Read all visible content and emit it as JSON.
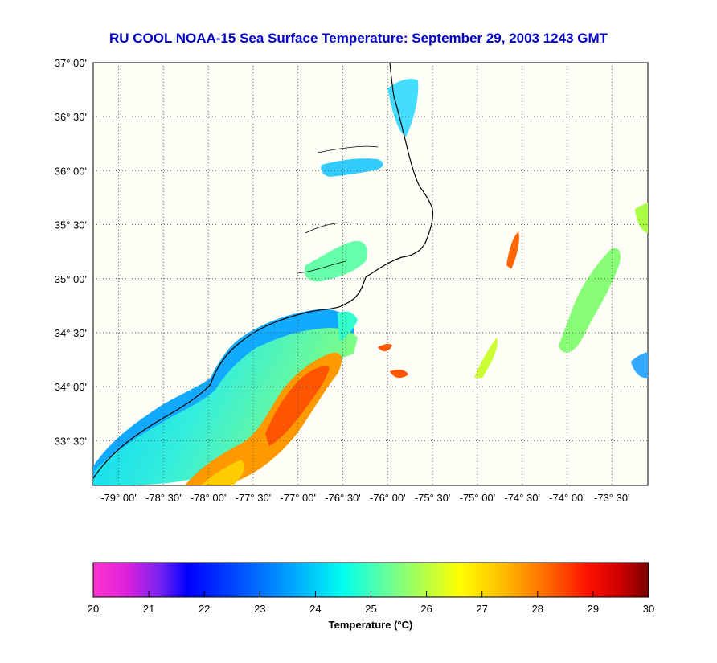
{
  "title": "RU COOL  NOAA-15  Sea Surface Temperature:  September 29, 2003 1243 GMT",
  "lat_ticks": [
    "37° 00'",
    "36° 30'",
    "36° 00'",
    "35° 30'",
    "35° 00'",
    "34° 30'",
    "34° 00'",
    "33° 30'"
  ],
  "lon_ticks": [
    "-79° 00'",
    "-78° 30'",
    "-78° 00'",
    "-77° 30'",
    "-77° 00'",
    "-76° 30'",
    "-76° 00'",
    "-75° 30'",
    "-75° 00'",
    "-74° 30'",
    "-74° 00'",
    "-73° 30'"
  ],
  "colorbar": {
    "title": "Temperature (°C)",
    "ticks": [
      "20",
      "21",
      "22",
      "23",
      "24",
      "25",
      "26",
      "27",
      "28",
      "29",
      "30"
    ],
    "min": 20,
    "max": 30
  },
  "colors": {
    "title": "#0000c8",
    "map_background": "#fffff8",
    "grid": "#444444",
    "coast": "#000000"
  }
}
